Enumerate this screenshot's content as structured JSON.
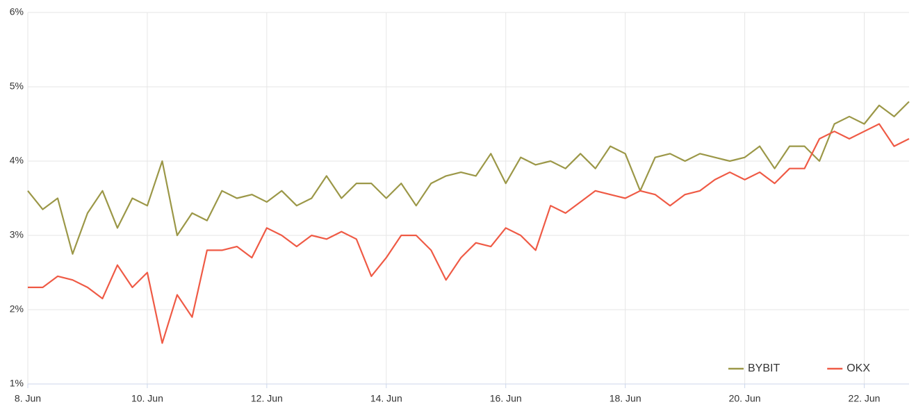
{
  "chart_data": {
    "type": "line",
    "x": [
      8,
      8.25,
      8.5,
      8.75,
      9,
      9.25,
      9.5,
      9.75,
      10,
      10.25,
      10.5,
      10.75,
      11,
      11.25,
      11.5,
      11.75,
      12,
      12.25,
      12.5,
      12.75,
      13,
      13.25,
      13.5,
      13.75,
      14,
      14.25,
      14.5,
      14.75,
      15,
      15.25,
      15.5,
      15.75,
      16,
      16.25,
      16.5,
      16.75,
      17,
      17.25,
      17.5,
      17.75,
      18,
      18.25,
      18.5,
      18.75,
      19,
      19.25,
      19.5,
      19.75,
      20,
      20.25,
      20.5,
      20.75,
      21,
      21.25,
      21.5,
      21.75,
      22,
      22.25,
      22.5,
      22.75
    ],
    "series": [
      {
        "name": "BYBIT",
        "color": "#9b9747",
        "values": [
          3.6,
          3.35,
          3.5,
          2.75,
          3.3,
          3.6,
          3.1,
          3.5,
          3.4,
          4.0,
          3.0,
          3.3,
          3.2,
          3.6,
          3.5,
          3.55,
          3.45,
          3.6,
          3.4,
          3.5,
          3.8,
          3.5,
          3.7,
          3.7,
          3.5,
          3.7,
          3.4,
          3.7,
          3.8,
          3.85,
          3.8,
          4.1,
          3.7,
          4.05,
          3.95,
          4.0,
          3.9,
          4.1,
          3.9,
          4.2,
          4.1,
          3.6,
          4.05,
          4.1,
          4.0,
          4.1,
          4.05,
          4.0,
          4.05,
          4.2,
          3.9,
          4.2,
          4.2,
          4.0,
          4.5,
          4.6,
          4.5,
          4.75,
          4.6,
          4.8
        ]
      },
      {
        "name": "OKX",
        "color": "#ef5a45",
        "values": [
          2.3,
          2.3,
          2.45,
          2.4,
          2.3,
          2.15,
          2.6,
          2.3,
          2.5,
          1.55,
          2.2,
          1.9,
          2.8,
          2.8,
          2.85,
          2.7,
          3.1,
          3.0,
          2.85,
          3.0,
          2.95,
          3.05,
          2.95,
          2.45,
          2.7,
          3.0,
          3.0,
          2.8,
          2.4,
          2.7,
          2.9,
          2.85,
          3.1,
          3.0,
          2.8,
          3.4,
          3.3,
          3.45,
          3.6,
          3.55,
          3.5,
          3.6,
          3.55,
          3.4,
          3.55,
          3.6,
          3.75,
          3.85,
          3.75,
          3.85,
          3.7,
          3.9,
          3.9,
          4.3,
          4.4,
          4.3,
          4.4,
          4.5,
          4.2,
          4.3
        ]
      }
    ],
    "xlim": [
      8,
      22.75
    ],
    "xticks": [
      {
        "value": 8,
        "label": "8. Jun"
      },
      {
        "value": 10,
        "label": "10. Jun"
      },
      {
        "value": 12,
        "label": "12. Jun"
      },
      {
        "value": 14,
        "label": "14. Jun"
      },
      {
        "value": 16,
        "label": "16. Jun"
      },
      {
        "value": 18,
        "label": "18. Jun"
      },
      {
        "value": 20,
        "label": "20. Jun"
      },
      {
        "value": 22,
        "label": "22. Jun"
      }
    ],
    "ylim": [
      1,
      6
    ],
    "yticks": [
      {
        "value": 1,
        "label": "1%"
      },
      {
        "value": 2,
        "label": "2%"
      },
      {
        "value": 3,
        "label": "3%"
      },
      {
        "value": 4,
        "label": "4%"
      },
      {
        "value": 5,
        "label": "5%"
      },
      {
        "value": 6,
        "label": "6%"
      }
    ],
    "grid": true,
    "legend": "bottom-right"
  }
}
